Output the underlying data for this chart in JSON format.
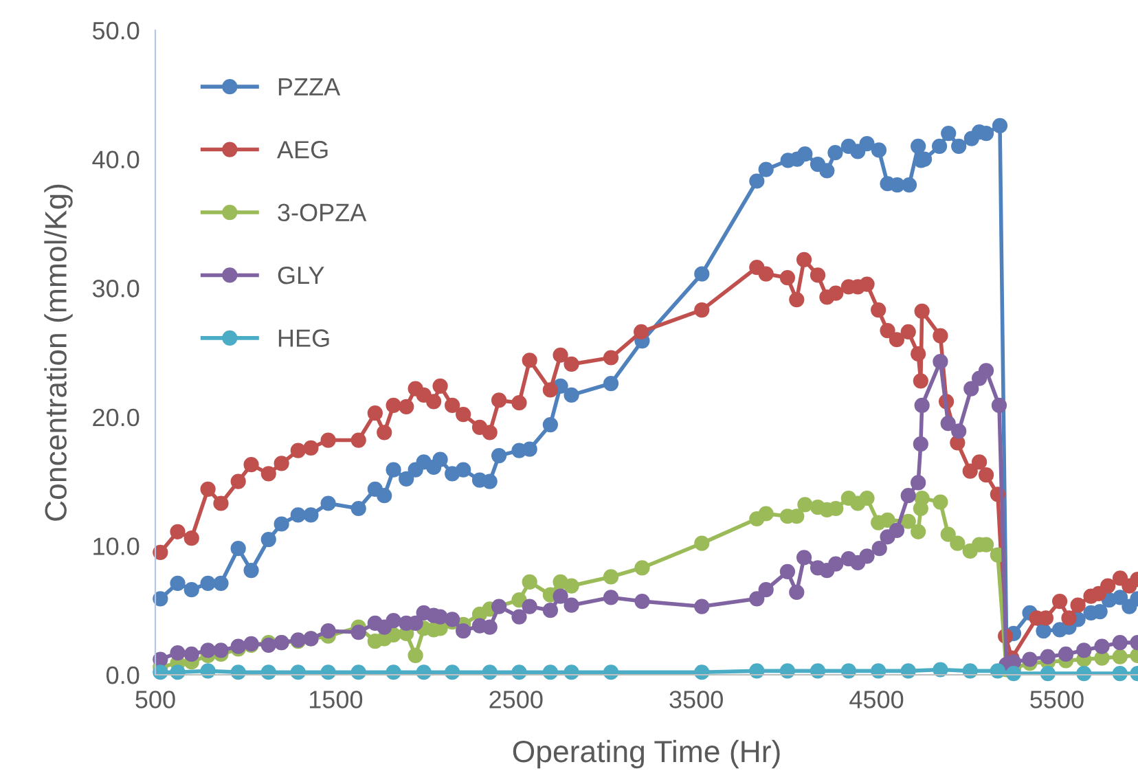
{
  "chart_data": {
    "type": "line",
    "xlabel": "Operating Time (Hr)",
    "ylabel": "Concentration (mmol/Kg)",
    "xlim": [
      500,
      5950
    ],
    "xticks": [
      500,
      1500,
      2500,
      3500,
      4500,
      5500
    ],
    "ylim": [
      0,
      50
    ],
    "yticks": [
      {
        "value": 0,
        "label": "0.0"
      },
      {
        "value": 10,
        "label": "10.0"
      },
      {
        "value": 20,
        "label": "20.0"
      },
      {
        "value": 30,
        "label": "30.0"
      },
      {
        "value": 40,
        "label": "40.0"
      },
      {
        "value": 50,
        "label": "50.0"
      }
    ],
    "grid": false,
    "legend": "top left",
    "marker": "circle",
    "line_style": "solid",
    "series": [
      {
        "name": "PZZA",
        "color": "#4f81bd",
        "x": [
          528,
          624,
          701,
          792,
          864,
          960,
          1032,
          1128,
          1200,
          1292,
          1363,
          1459,
          1627,
          1719,
          1770,
          1821,
          1892,
          1943,
          1989,
          2044,
          2080,
          2147,
          2208,
          2299,
          2355,
          2406,
          2518,
          2576,
          2691,
          2747,
          2808,
          3027,
          3200,
          3531,
          3836,
          3887,
          4009,
          4060,
          4103,
          4174,
          4225,
          4271,
          4345,
          4396,
          4447,
          4513,
          4561,
          4615,
          4681,
          4731,
          4747,
          4765,
          4849,
          4899,
          4956,
          5027,
          5070,
          5108,
          5184,
          5220,
          5260,
          5350,
          5426,
          5516,
          5567,
          5617,
          5689,
          5739,
          5790,
          5851,
          5902,
          5948
        ],
        "values": [
          5.9,
          7.1,
          6.6,
          7.1,
          7.1,
          9.8,
          8.1,
          10.5,
          11.7,
          12.4,
          12.4,
          13.3,
          12.9,
          14.4,
          13.9,
          15.9,
          15.2,
          15.9,
          16.5,
          16.1,
          16.7,
          15.6,
          15.9,
          15.1,
          15.0,
          17.0,
          17.4,
          17.5,
          19.4,
          22.4,
          21.7,
          22.6,
          25.9,
          31.1,
          38.3,
          39.2,
          39.9,
          40.0,
          40.4,
          39.6,
          39.1,
          40.5,
          41.0,
          40.6,
          41.2,
          40.7,
          38.1,
          38.0,
          38.0,
          41.0,
          39.9,
          40.0,
          41.0,
          42.0,
          41.0,
          41.6,
          42.1,
          42.0,
          42.6,
          3.0,
          3.2,
          4.8,
          3.4,
          3.5,
          3.7,
          4.3,
          4.8,
          4.9,
          5.8,
          6.0,
          5.3,
          5.9
        ]
      },
      {
        "name": "AEG",
        "color": "#c0504d",
        "x": [
          528,
          624,
          701,
          792,
          864,
          960,
          1032,
          1128,
          1200,
          1292,
          1363,
          1459,
          1627,
          1719,
          1770,
          1821,
          1892,
          1943,
          1989,
          2044,
          2080,
          2147,
          2208,
          2299,
          2355,
          2406,
          2518,
          2576,
          2691,
          2747,
          2808,
          3027,
          3195,
          3531,
          3836,
          3887,
          4006,
          4057,
          4098,
          4174,
          4225,
          4274,
          4345,
          4396,
          4447,
          4510,
          4561,
          4612,
          4676,
          4731,
          4745,
          4752,
          4854,
          4887,
          4949,
          5019,
          5070,
          5108,
          5172,
          5215,
          5250,
          5388,
          5439,
          5516,
          5567,
          5617,
          5689,
          5732,
          5783,
          5851,
          5902,
          5948
        ],
        "values": [
          9.5,
          11.1,
          10.6,
          14.4,
          13.3,
          15.0,
          16.3,
          15.6,
          16.4,
          17.4,
          17.6,
          18.2,
          18.2,
          20.3,
          18.8,
          20.9,
          20.8,
          22.2,
          21.7,
          21.2,
          22.4,
          20.9,
          20.2,
          19.2,
          18.8,
          21.3,
          21.1,
          24.4,
          22.1,
          24.8,
          24.1,
          24.6,
          26.6,
          28.3,
          31.6,
          31.1,
          30.8,
          29.1,
          32.2,
          31.0,
          29.3,
          29.6,
          30.1,
          30.1,
          30.3,
          28.3,
          26.7,
          26.0,
          26.6,
          24.9,
          22.8,
          28.2,
          26.3,
          21.2,
          18.0,
          15.8,
          16.5,
          15.5,
          14.0,
          3.0,
          1.3,
          4.4,
          4.4,
          5.7,
          4.4,
          5.4,
          6.1,
          6.3,
          6.9,
          7.5,
          6.9,
          7.4
        ]
      },
      {
        "name": "3-OPZA",
        "color": "#9bbb59",
        "x": [
          528,
          624,
          701,
          792,
          864,
          960,
          1032,
          1128,
          1200,
          1292,
          1363,
          1459,
          1627,
          1719,
          1770,
          1821,
          1892,
          1943,
          1989,
          2044,
          2080,
          2147,
          2208,
          2299,
          2355,
          2518,
          2576,
          2691,
          2747,
          2808,
          3027,
          3200,
          3531,
          3836,
          3887,
          4006,
          4057,
          4103,
          4174,
          4225,
          4274,
          4345,
          4396,
          4447,
          4510,
          4561,
          4676,
          4731,
          4745,
          4752,
          4854,
          4897,
          4949,
          5019,
          5070,
          5108,
          5172,
          5220,
          5260,
          5350,
          5450,
          5550,
          5650,
          5750,
          5850,
          5948
        ],
        "values": [
          0.6,
          0.9,
          1.0,
          1.5,
          1.6,
          2.0,
          2.3,
          2.5,
          2.5,
          2.6,
          2.8,
          3.0,
          3.7,
          2.6,
          2.8,
          3.1,
          3.2,
          1.5,
          3.6,
          3.5,
          3.6,
          4.1,
          3.9,
          4.7,
          5.1,
          5.8,
          7.2,
          6.2,
          7.2,
          6.9,
          7.6,
          8.3,
          10.2,
          12.1,
          12.5,
          12.3,
          12.3,
          13.2,
          13.0,
          12.8,
          12.9,
          13.7,
          13.3,
          13.7,
          11.8,
          12.0,
          11.9,
          11.1,
          12.9,
          13.7,
          13.4,
          10.9,
          10.2,
          9.6,
          10.1,
          10.1,
          9.3,
          0.4,
          0.5,
          0.9,
          1.0,
          1.1,
          1.2,
          1.3,
          1.4,
          1.5
        ]
      },
      {
        "name": "GLY",
        "color": "#8064a2",
        "x": [
          528,
          624,
          701,
          792,
          864,
          960,
          1032,
          1128,
          1200,
          1292,
          1363,
          1459,
          1627,
          1719,
          1770,
          1821,
          1892,
          1943,
          1989,
          2044,
          2080,
          2147,
          2208,
          2299,
          2355,
          2406,
          2518,
          2576,
          2691,
          2747,
          2808,
          3027,
          3200,
          3531,
          3836,
          3887,
          4006,
          4057,
          4098,
          4174,
          4225,
          4274,
          4345,
          4396,
          4447,
          4516,
          4561,
          4612,
          4676,
          4731,
          4745,
          4752,
          4854,
          4897,
          4956,
          5025,
          5070,
          5108,
          5180,
          5220,
          5260,
          5350,
          5450,
          5550,
          5650,
          5750,
          5850,
          5948
        ],
        "values": [
          1.2,
          1.7,
          1.6,
          1.9,
          1.9,
          2.2,
          2.4,
          2.3,
          2.5,
          2.7,
          2.8,
          3.4,
          3.3,
          4.0,
          3.7,
          4.2,
          4.0,
          4.0,
          4.8,
          4.6,
          4.5,
          4.3,
          3.4,
          3.8,
          3.7,
          5.3,
          4.5,
          5.3,
          5.0,
          6.1,
          5.4,
          6.0,
          5.7,
          5.3,
          5.9,
          6.6,
          8.0,
          6.4,
          9.1,
          8.3,
          8.1,
          8.6,
          9.0,
          8.7,
          9.2,
          9.8,
          10.7,
          11.2,
          13.9,
          14.9,
          17.9,
          20.9,
          24.3,
          19.5,
          18.9,
          22.2,
          23.0,
          23.6,
          20.9,
          0.8,
          1.0,
          1.2,
          1.4,
          1.6,
          1.9,
          2.2,
          2.5,
          2.5
        ]
      },
      {
        "name": "HEG",
        "color": "#4bacc6",
        "x": [
          528,
          624,
          792,
          960,
          1128,
          1292,
          1459,
          1627,
          1821,
          1989,
          2147,
          2355,
          2518,
          2691,
          2808,
          3027,
          3531,
          3836,
          4006,
          4174,
          4345,
          4510,
          4676,
          4854,
          5019,
          5172,
          5260,
          5450,
          5650,
          5850,
          5948
        ],
        "values": [
          0.2,
          0.2,
          0.3,
          0.2,
          0.2,
          0.2,
          0.2,
          0.2,
          0.2,
          0.2,
          0.2,
          0.2,
          0.2,
          0.2,
          0.2,
          0.2,
          0.2,
          0.3,
          0.3,
          0.3,
          0.3,
          0.3,
          0.3,
          0.4,
          0.3,
          0.3,
          0.1,
          0.1,
          0.1,
          0.1,
          0.1
        ]
      }
    ]
  }
}
